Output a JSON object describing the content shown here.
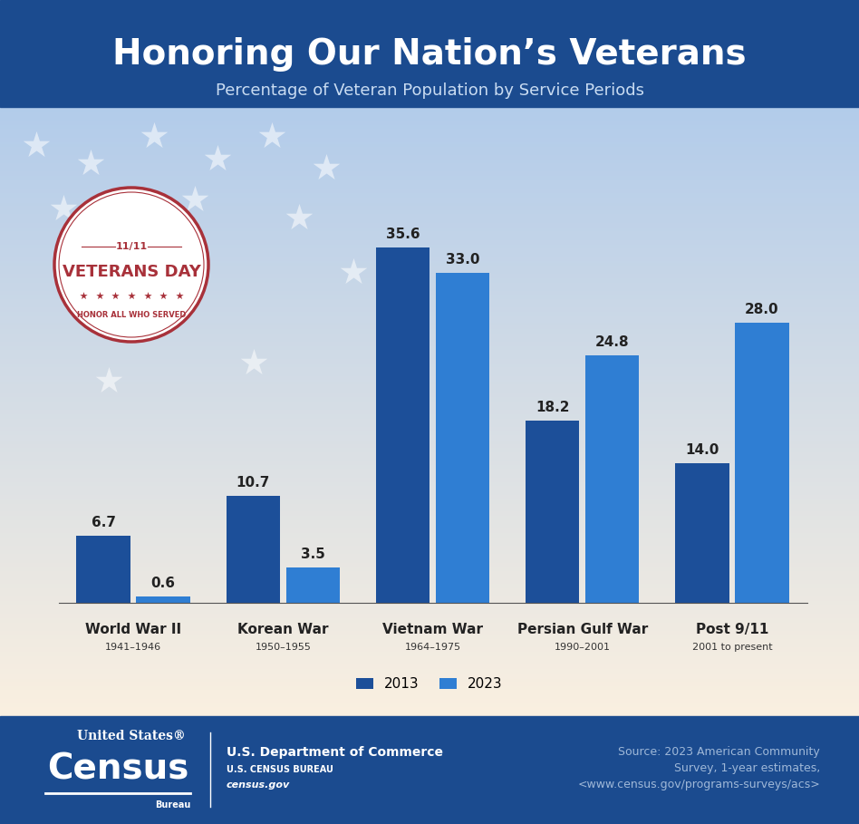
{
  "chart_data": {
    "type": "bar",
    "title": "Honoring Our Nation’s Veterans",
    "subtitle": "Percentage of Veteran Population by Service Periods",
    "categories": [
      "World War II",
      "Korean War",
      "Vietnam War",
      "Persian Gulf War",
      "Post 9/11"
    ],
    "periods": [
      "1941–1946",
      "1950–1955",
      "1964–1975",
      "1990–2001",
      "2001 to present"
    ],
    "series": [
      {
        "name": "2013",
        "color": "#1c4f99",
        "values": [
          6.7,
          10.7,
          35.6,
          18.2,
          14.0
        ],
        "value_labels": [
          "6.7",
          "10.7",
          "35.6",
          "18.2",
          "14.0"
        ]
      },
      {
        "name": "2023",
        "color": "#2f7ed3",
        "values": [
          0.6,
          3.5,
          33.0,
          24.8,
          28.0
        ],
        "value_labels": [
          "0.6",
          "3.5",
          "33.0",
          "24.8",
          "28.0"
        ]
      }
    ],
    "ylim": [
      0,
      40
    ],
    "data_labels": true,
    "tick_labels": "x",
    "legend": "lower center",
    "grid": false
  },
  "badge": {
    "date": "11/11",
    "title": "VETERANS DAY",
    "motto": "HONOR ALL WHO SERVED"
  },
  "footer": {
    "logo": [
      "United States®",
      "Census",
      "Bureau"
    ],
    "agency": [
      "U.S. Department of Commerce",
      "U.S. CENSUS BUREAU",
      "census.gov"
    ],
    "source": [
      "Source: 2023 American Community",
      "Survey, 1-year estimates,",
      "<www.census.gov/programs-surveys/acs>"
    ]
  }
}
